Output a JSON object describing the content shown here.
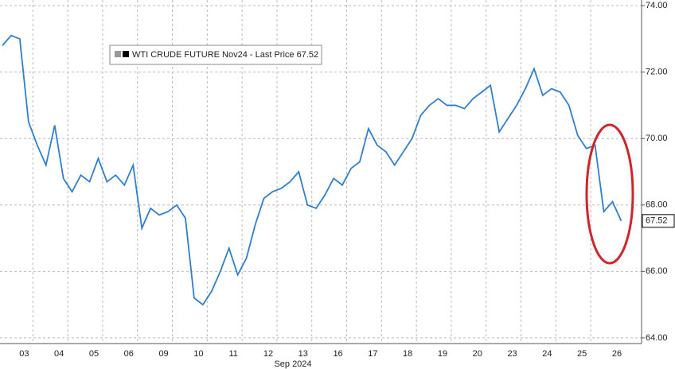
{
  "chart_data": {
    "type": "line",
    "x_label": "Sep 2024",
    "categories": [
      null,
      null,
      "03",
      null,
      null,
      null,
      "04",
      null,
      null,
      null,
      "05",
      null,
      null,
      null,
      "06",
      null,
      null,
      null,
      "09",
      null,
      null,
      null,
      "10",
      null,
      null,
      null,
      "11",
      null,
      null,
      null,
      "12",
      null,
      null,
      null,
      "13",
      null,
      null,
      null,
      "16",
      null,
      null,
      null,
      "17",
      null,
      null,
      null,
      "18",
      null,
      null,
      null,
      "19",
      null,
      null,
      null,
      "20",
      null,
      null,
      null,
      "23",
      null,
      null,
      null,
      "24",
      null,
      null,
      null,
      "25",
      null,
      null,
      null,
      "26",
      null
    ],
    "series": [
      {
        "name": "WTI CRUDE FUTURE Nov24 - Last Price 67.52",
        "color": "#2f7fd0",
        "values": [
          72.8,
          73.1,
          73.0,
          70.5,
          69.8,
          69.2,
          70.4,
          68.8,
          68.4,
          68.9,
          68.7,
          69.4,
          68.7,
          68.9,
          68.6,
          69.2,
          67.3,
          67.9,
          67.7,
          67.8,
          68.0,
          67.6,
          65.2,
          65.0,
          65.4,
          66.0,
          66.7,
          65.9,
          66.4,
          67.4,
          68.2,
          68.4,
          68.5,
          68.7,
          69.0,
          68.0,
          67.9,
          68.3,
          68.8,
          68.6,
          69.1,
          69.3,
          70.3,
          69.8,
          69.6,
          69.2,
          69.6,
          70.0,
          70.7,
          71.0,
          71.2,
          71.0,
          71.0,
          70.9,
          71.2,
          71.4,
          71.6,
          70.2,
          70.6,
          71.0,
          71.5,
          72.1,
          71.3,
          71.5,
          71.4,
          71.0,
          70.1,
          69.7,
          69.8,
          67.8,
          68.1,
          67.52
        ]
      }
    ],
    "ylim": [
      63.83,
      74.17
    ],
    "yticks": [
      {
        "value": 64,
        "label": "64.00"
      },
      {
        "value": 66,
        "label": "66.00"
      },
      {
        "value": 68,
        "label": "68.00"
      },
      {
        "value": 70,
        "label": "70.00"
      },
      {
        "value": 72,
        "label": "72.00"
      },
      {
        "value": 74,
        "label": "74.00"
      }
    ],
    "grid": true
  }
}
